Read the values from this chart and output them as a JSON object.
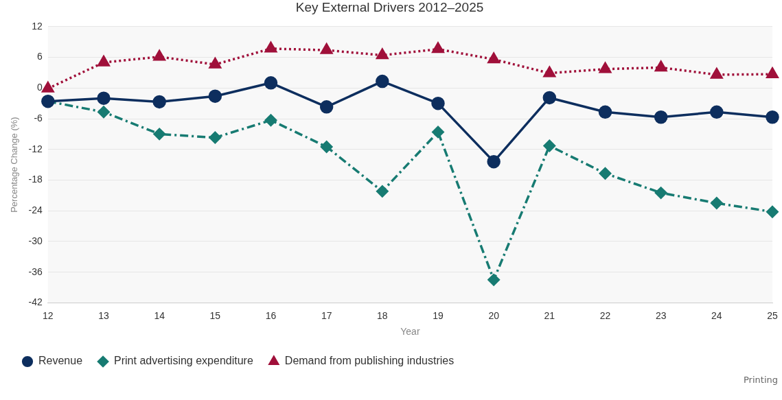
{
  "chart_data": {
    "type": "line",
    "title": "Key External Drivers 2012–2025",
    "xlabel": "Year",
    "ylabel": "Percentage Change (%)",
    "categories": [
      "12",
      "13",
      "14",
      "15",
      "16",
      "17",
      "18",
      "19",
      "20",
      "21",
      "22",
      "23",
      "24",
      "25"
    ],
    "series": [
      {
        "name": "Revenue",
        "color": "#0d2e5e",
        "marker": "circle",
        "line_style": "solid",
        "values": [
          -2.6,
          -2.0,
          -2.7,
          -1.6,
          1.0,
          -3.7,
          1.3,
          -3.0,
          -14.4,
          -1.9,
          -4.7,
          -5.7,
          -4.7,
          -5.7
        ]
      },
      {
        "name": "Print advertising expenditure",
        "color": "#177b72",
        "marker": "diamond",
        "line_style": "dashed",
        "values": [
          -2.6,
          -4.7,
          -9.0,
          -9.7,
          -6.3,
          -11.5,
          -20.2,
          -8.6,
          -37.5,
          -11.3,
          -16.7,
          -20.5,
          -22.5,
          -24.2
        ]
      },
      {
        "name": "Demand from publishing industries",
        "color": "#a0103a",
        "marker": "triangle",
        "line_style": "dotted",
        "values": [
          -0.1,
          5.0,
          6.1,
          4.6,
          7.7,
          7.4,
          6.4,
          7.6,
          5.6,
          2.9,
          3.7,
          4.0,
          2.6,
          2.7
        ]
      }
    ],
    "ylim": [
      -42,
      12
    ],
    "yticks": [
      -42,
      -36,
      -30,
      -24,
      -18,
      -12,
      -6,
      0,
      6,
      12
    ],
    "grid": "y",
    "legend": "bottom left",
    "annotations": [
      "Printing"
    ]
  }
}
